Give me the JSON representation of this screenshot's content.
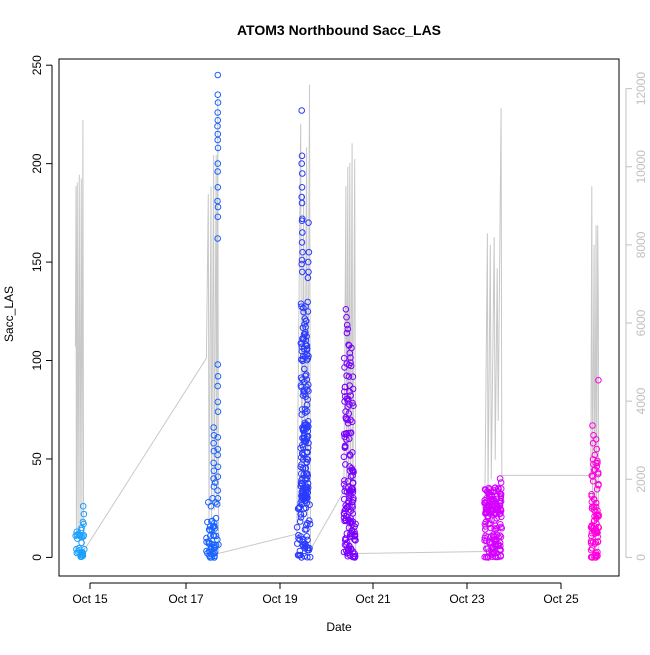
{
  "chart_data": {
    "type": "scatter",
    "title": "ATOM3 Northbound Sacc_LAS",
    "xlabel": "Date",
    "ylabel": "Sacc_LAS",
    "x_ticks": [
      "Oct 15",
      "Oct 17",
      "Oct 19",
      "Oct 21",
      "Oct 23",
      "Oct 25"
    ],
    "y_left": {
      "ylim": [
        0,
        250
      ],
      "ticks": [
        0,
        50,
        100,
        150,
        200,
        250
      ]
    },
    "y_right": {
      "ylim": [
        0,
        12600
      ],
      "ticks": [
        0,
        2000,
        4000,
        6000,
        8000,
        10000,
        12000
      ]
    },
    "xlim": [
      "2013-10-14T09:00",
      "2013-10-26T06:00"
    ],
    "grid": false,
    "secondary_series": {
      "color": "#c8c8c8",
      "points": [
        [
          "2013-10-14T17:20",
          5400
        ],
        [
          "2013-10-14T17:40",
          9500
        ],
        [
          "2013-10-14T17:50",
          500
        ],
        [
          "2013-10-14T18:20",
          9600
        ],
        [
          "2013-10-14T18:40",
          600
        ],
        [
          "2013-10-14T19:20",
          9800
        ],
        [
          "2013-10-14T19:40",
          700
        ],
        [
          "2013-10-14T20:20",
          9700
        ],
        [
          "2013-10-14T20:40",
          800
        ],
        [
          "2013-10-14T21:10",
          11200
        ],
        [
          "2013-10-14T21:30",
          300
        ],
        [
          "2013-10-14T22:00",
          200
        ],
        [
          "2013-10-17T12:00",
          5100
        ],
        [
          "2013-10-17T13:00",
          9300
        ],
        [
          "2013-10-17T13:20",
          900
        ],
        [
          "2013-10-17T14:20",
          9500
        ],
        [
          "2013-10-17T14:40",
          1000
        ],
        [
          "2013-10-17T15:40",
          10300
        ],
        [
          "2013-10-17T16:00",
          1200
        ],
        [
          "2013-10-17T17:00",
          10300
        ],
        [
          "2013-10-17T17:20",
          1300
        ],
        [
          "2013-10-17T17:50",
          11800
        ],
        [
          "2013-10-17T18:10",
          100
        ],
        [
          "2013-10-19T10:00",
          600
        ],
        [
          "2013-10-19T12:00",
          11100
        ],
        [
          "2013-10-19T12:30",
          1200
        ],
        [
          "2013-10-19T13:30",
          9300
        ],
        [
          "2013-10-19T14:00",
          1400
        ],
        [
          "2013-10-19T15:00",
          10500
        ],
        [
          "2013-10-19T15:30",
          900
        ],
        [
          "2013-10-19T16:30",
          12100
        ],
        [
          "2013-10-19T17:00",
          200
        ],
        [
          "2013-10-20T10:00",
          1700
        ],
        [
          "2013-10-20T11:00",
          9500
        ],
        [
          "2013-10-20T11:20",
          800
        ],
        [
          "2013-10-20T12:00",
          10000
        ],
        [
          "2013-10-20T12:20",
          700
        ],
        [
          "2013-10-20T13:00",
          10100
        ],
        [
          "2013-10-20T13:20",
          900
        ],
        [
          "2013-10-20T14:10",
          10600
        ],
        [
          "2013-10-20T14:30",
          400
        ],
        [
          "2013-10-20T15:30",
          10200
        ],
        [
          "2013-10-20T16:00",
          100
        ],
        [
          "2013-10-23T09:30",
          150
        ],
        [
          "2013-10-23T11:00",
          8300
        ],
        [
          "2013-10-23T11:20",
          1500
        ],
        [
          "2013-10-23T12:30",
          8000
        ],
        [
          "2013-10-23T13:00",
          2000
        ],
        [
          "2013-10-23T14:30",
          8200
        ],
        [
          "2013-10-23T15:00",
          2500
        ],
        [
          "2013-10-23T16:00",
          7400
        ],
        [
          "2013-10-23T16:30",
          3500
        ],
        [
          "2013-10-23T18:00",
          11500
        ],
        [
          "2013-10-23T18:20",
          2100
        ],
        [
          "2013-10-25T15:40",
          2100
        ],
        [
          "2013-10-25T16:10",
          9500
        ],
        [
          "2013-10-25T16:30",
          1200
        ],
        [
          "2013-10-25T17:20",
          8000
        ],
        [
          "2013-10-25T17:40",
          900
        ],
        [
          "2013-10-25T18:20",
          8500
        ],
        [
          "2013-10-25T18:40",
          1100
        ],
        [
          "2013-10-25T19:10",
          8500
        ],
        [
          "2013-10-25T19:30",
          6100
        ],
        [
          "2013-10-25T19:40",
          200
        ]
      ]
    },
    "series": [
      {
        "color": "#1aa0ff",
        "dense": {
          "start": "2013-10-14T17:20",
          "end": "2013-10-14T22:00",
          "y_max": 14,
          "density": 0.9
        },
        "outliers": [
          [
            "2013-10-14T17:30",
            11
          ],
          [
            "2013-10-14T18:00",
            13
          ],
          [
            "2013-10-14T19:00",
            12
          ],
          [
            "2013-10-14T20:30",
            15
          ],
          [
            "2013-10-14T21:30",
            17
          ],
          [
            "2013-10-14T21:20",
            26
          ],
          [
            "2013-10-14T21:40",
            22
          ],
          [
            "2013-10-14T21:10",
            18
          ]
        ]
      },
      {
        "color": "#1a63ff",
        "dense": {
          "start": "2013-10-17T12:00",
          "end": "2013-10-17T18:10",
          "y_max": 20,
          "density": 1.3
        },
        "outliers": [
          [
            "2013-10-17T17:50",
            245
          ],
          [
            "2013-10-17T17:50",
            235
          ],
          [
            "2013-10-17T17:55",
            231
          ],
          [
            "2013-10-17T17:45",
            226
          ],
          [
            "2013-10-17T17:50",
            222
          ],
          [
            "2013-10-17T17:40",
            219
          ],
          [
            "2013-10-17T17:50",
            215
          ],
          [
            "2013-10-17T17:45",
            212
          ],
          [
            "2013-10-17T17:55",
            208
          ],
          [
            "2013-10-17T17:50",
            200
          ],
          [
            "2013-10-17T17:45",
            196
          ],
          [
            "2013-10-17T17:50",
            188
          ],
          [
            "2013-10-17T17:40",
            181
          ],
          [
            "2013-10-17T17:55",
            178
          ],
          [
            "2013-10-17T17:50",
            173
          ],
          [
            "2013-10-17T17:45",
            162
          ],
          [
            "2013-10-17T17:50",
            98
          ],
          [
            "2013-10-17T17:55",
            92
          ],
          [
            "2013-10-17T17:45",
            87
          ],
          [
            "2013-10-17T17:50",
            79
          ],
          [
            "2013-10-17T17:55",
            74
          ],
          [
            "2013-10-17T15:40",
            66
          ],
          [
            "2013-10-17T15:50",
            62
          ],
          [
            "2013-10-17T15:40",
            58
          ],
          [
            "2013-10-17T15:50",
            54
          ],
          [
            "2013-10-17T17:50",
            61
          ],
          [
            "2013-10-17T17:50",
            55
          ],
          [
            "2013-10-17T17:45",
            52
          ],
          [
            "2013-10-17T15:40",
            48
          ],
          [
            "2013-10-17T15:50",
            44
          ],
          [
            "2013-10-17T17:55",
            46
          ],
          [
            "2013-10-17T15:40",
            40
          ],
          [
            "2013-10-17T17:50",
            41
          ],
          [
            "2013-10-17T15:50",
            36
          ],
          [
            "2013-10-17T16:30",
            38
          ],
          [
            "2013-10-17T17:45",
            34
          ],
          [
            "2013-10-17T17:50",
            30
          ],
          [
            "2013-10-17T13:00",
            28
          ],
          [
            "2013-10-17T14:20",
            26
          ],
          [
            "2013-10-17T15:10",
            30
          ],
          [
            "2013-10-17T16:40",
            28
          ],
          [
            "2013-10-17T17:30",
            27
          ]
        ]
      },
      {
        "color": "#2a3aff",
        "dense": {
          "start": "2013-10-19T10:00",
          "end": "2013-10-19T17:00",
          "y_max": 30,
          "density": 1.3
        },
        "column": {
          "start": "2013-10-19T12:00",
          "end": "2013-10-19T16:00",
          "y_min": 30,
          "y_max": 130,
          "count": 160
        },
        "outliers": [
          [
            "2013-10-19T12:30",
            227
          ],
          [
            "2013-10-19T12:40",
            204
          ],
          [
            "2013-10-19T12:30",
            200
          ],
          [
            "2013-10-19T12:50",
            195
          ],
          [
            "2013-10-19T12:40",
            188
          ],
          [
            "2013-10-19T12:30",
            183
          ],
          [
            "2013-10-19T12:40",
            180
          ],
          [
            "2013-10-19T12:50",
            172
          ],
          [
            "2013-10-19T12:40",
            171
          ],
          [
            "2013-10-19T12:50",
            165
          ],
          [
            "2013-10-19T12:40",
            160
          ],
          [
            "2013-10-19T13:00",
            155
          ],
          [
            "2013-10-19T12:40",
            151
          ],
          [
            "2013-10-19T12:30",
            149
          ],
          [
            "2013-10-19T12:50",
            145
          ],
          [
            "2013-10-19T16:00",
            170
          ],
          [
            "2013-10-19T16:10",
            155
          ],
          [
            "2013-10-19T15:50",
            150
          ],
          [
            "2013-10-19T16:00",
            145
          ],
          [
            "2013-10-19T15:40",
            142
          ]
        ]
      },
      {
        "color": "#7a00ff",
        "dense": {
          "start": "2013-10-20T10:00",
          "end": "2013-10-20T16:00",
          "y_max": 18,
          "density": 1.3
        },
        "column": {
          "start": "2013-10-20T10:00",
          "end": "2013-10-20T15:00",
          "y_min": 18,
          "y_max": 112,
          "count": 110
        },
        "outliers": [
          [
            "2013-10-20T11:00",
            126
          ],
          [
            "2013-10-20T11:20",
            122
          ],
          [
            "2013-10-20T11:40",
            118
          ],
          [
            "2013-10-20T12:00",
            116
          ],
          [
            "2013-10-20T11:30",
            114
          ],
          [
            "2013-10-20T12:20",
            108
          ],
          [
            "2013-10-20T14:30",
            44
          ],
          [
            "2013-10-20T14:40",
            38
          ],
          [
            "2013-10-20T14:20",
            35
          ],
          [
            "2013-10-20T14:50",
            30
          ]
        ]
      },
      {
        "color": "#d400ff",
        "dense": {
          "start": "2013-10-23T09:30",
          "end": "2013-10-23T18:20",
          "y_max": 22,
          "density": 1.4
        },
        "column": {
          "start": "2013-10-23T09:30",
          "end": "2013-10-23T18:20",
          "y_min": 22,
          "y_max": 36,
          "count": 90
        },
        "outliers": [
          [
            "2013-10-23T17:30",
            40
          ],
          [
            "2013-10-23T18:00",
            38
          ],
          [
            "2013-10-23T16:30",
            35
          ]
        ]
      },
      {
        "color": "#ff00dc",
        "dense": {
          "start": "2013-10-25T15:40",
          "end": "2013-10-25T19:40",
          "y_max": 12,
          "density": 1.1
        },
        "column": {
          "start": "2013-10-25T15:40",
          "end": "2013-10-25T19:40",
          "y_min": 12,
          "y_max": 50,
          "count": 55
        },
        "outliers": [
          [
            "2013-10-25T19:30",
            90
          ],
          [
            "2013-10-25T16:30",
            67
          ],
          [
            "2013-10-25T17:00",
            62
          ],
          [
            "2013-10-25T18:20",
            60
          ],
          [
            "2013-10-25T16:50",
            58
          ],
          [
            "2013-10-25T18:40",
            55
          ],
          [
            "2013-10-25T17:40",
            52
          ],
          [
            "2013-10-25T19:00",
            48
          ]
        ]
      }
    ]
  }
}
